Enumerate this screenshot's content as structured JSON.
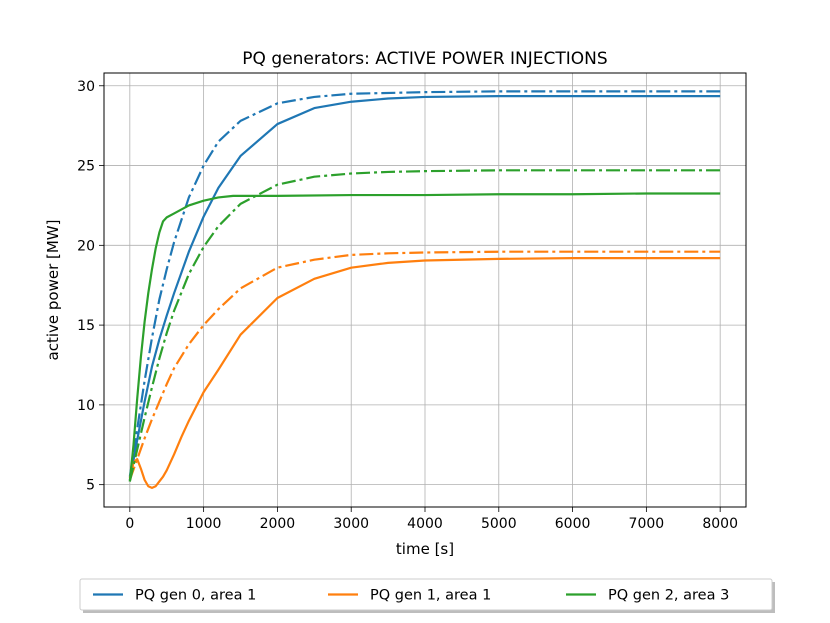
{
  "chart_data": {
    "type": "line",
    "title": "PQ generators: ACTIVE POWER INJECTIONS",
    "xlabel": "time [s]",
    "ylabel": "active power [MW]",
    "xlim": [
      -350,
      8350
    ],
    "ylim": [
      3.6,
      30.8
    ],
    "xticks": [
      0,
      1000,
      2000,
      3000,
      4000,
      5000,
      6000,
      7000,
      8000
    ],
    "yticks": [
      5,
      10,
      15,
      20,
      25,
      30
    ],
    "grid": true,
    "legend_placement": "bottom-center, below axes",
    "legend": [
      {
        "label": "PQ gen 0, area 1",
        "color": "#1f77b4"
      },
      {
        "label": "PQ gen 1, area 1",
        "color": "#ff7f0e"
      },
      {
        "label": "PQ gen 2, area 3",
        "color": "#2ca02c"
      }
    ],
    "series": [
      {
        "style": "solid",
        "color": "#1f77b4",
        "x": [
          0,
          100,
          200,
          300,
          400,
          500,
          600,
          800,
          1000,
          1200,
          1500,
          2000,
          2500,
          3000,
          3500,
          4000,
          5000,
          6000,
          7000,
          8000
        ],
        "y": [
          5.3,
          7.8,
          10.2,
          12.4,
          14.1,
          15.6,
          17.0,
          19.6,
          21.8,
          23.6,
          25.6,
          27.6,
          28.6,
          29.0,
          29.2,
          29.3,
          29.35,
          29.35,
          29.35,
          29.35
        ]
      },
      {
        "style": "dashdot",
        "color": "#1f77b4",
        "x": [
          0,
          100,
          200,
          300,
          400,
          500,
          600,
          800,
          1000,
          1200,
          1500,
          2000,
          2500,
          3000,
          4000,
          5000,
          6000,
          7000,
          8000
        ],
        "y": [
          5.5,
          8.5,
          11.5,
          14.2,
          16.6,
          18.5,
          20.2,
          23.0,
          25.0,
          26.5,
          27.8,
          28.9,
          29.3,
          29.5,
          29.6,
          29.65,
          29.65,
          29.65,
          29.65
        ]
      },
      {
        "style": "solid",
        "color": "#ff7f0e",
        "x": [
          0,
          50,
          100,
          150,
          200,
          250,
          300,
          350,
          400,
          450,
          500,
          600,
          700,
          800,
          1000,
          1200,
          1500,
          2000,
          2500,
          3000,
          3500,
          4000,
          5000,
          6000,
          7000,
          8000
        ],
        "y": [
          5.4,
          6.4,
          6.6,
          6.0,
          5.3,
          4.9,
          4.8,
          4.9,
          5.2,
          5.5,
          5.9,
          6.9,
          8.0,
          9.0,
          10.8,
          12.2,
          14.4,
          16.7,
          17.9,
          18.6,
          18.9,
          19.05,
          19.15,
          19.2,
          19.2,
          19.2
        ]
      },
      {
        "style": "dashdot",
        "color": "#ff7f0e",
        "x": [
          0,
          100,
          200,
          300,
          400,
          500,
          600,
          800,
          1000,
          1200,
          1500,
          2000,
          2500,
          3000,
          3500,
          4000,
          5000,
          6000,
          7000,
          8000
        ],
        "y": [
          5.3,
          6.6,
          7.9,
          9.1,
          10.2,
          11.3,
          12.3,
          13.8,
          15.0,
          16.0,
          17.3,
          18.6,
          19.1,
          19.4,
          19.5,
          19.55,
          19.6,
          19.6,
          19.6,
          19.6
        ]
      },
      {
        "style": "solid",
        "color": "#2ca02c",
        "x": [
          0,
          50,
          100,
          150,
          200,
          250,
          300,
          350,
          400,
          450,
          500,
          600,
          800,
          1000,
          1200,
          1400,
          1600,
          2000,
          3000,
          4000,
          5000,
          6000,
          7000,
          8000
        ],
        "y": [
          5.2,
          7.5,
          10.4,
          13.0,
          15.2,
          17.0,
          18.5,
          19.8,
          20.8,
          21.5,
          21.75,
          22.0,
          22.5,
          22.8,
          23.0,
          23.1,
          23.1,
          23.1,
          23.15,
          23.15,
          23.2,
          23.2,
          23.25,
          23.25
        ]
      },
      {
        "style": "dashdot",
        "color": "#2ca02c",
        "x": [
          0,
          100,
          200,
          300,
          400,
          500,
          600,
          800,
          1000,
          1200,
          1500,
          2000,
          2500,
          3000,
          3500,
          4000,
          5000,
          6000,
          7000,
          8000
        ],
        "y": [
          5.2,
          7.2,
          9.2,
          11.1,
          12.9,
          14.5,
          15.9,
          18.2,
          19.9,
          21.2,
          22.6,
          23.8,
          24.3,
          24.5,
          24.6,
          24.65,
          24.7,
          24.7,
          24.7,
          24.7
        ]
      }
    ]
  }
}
